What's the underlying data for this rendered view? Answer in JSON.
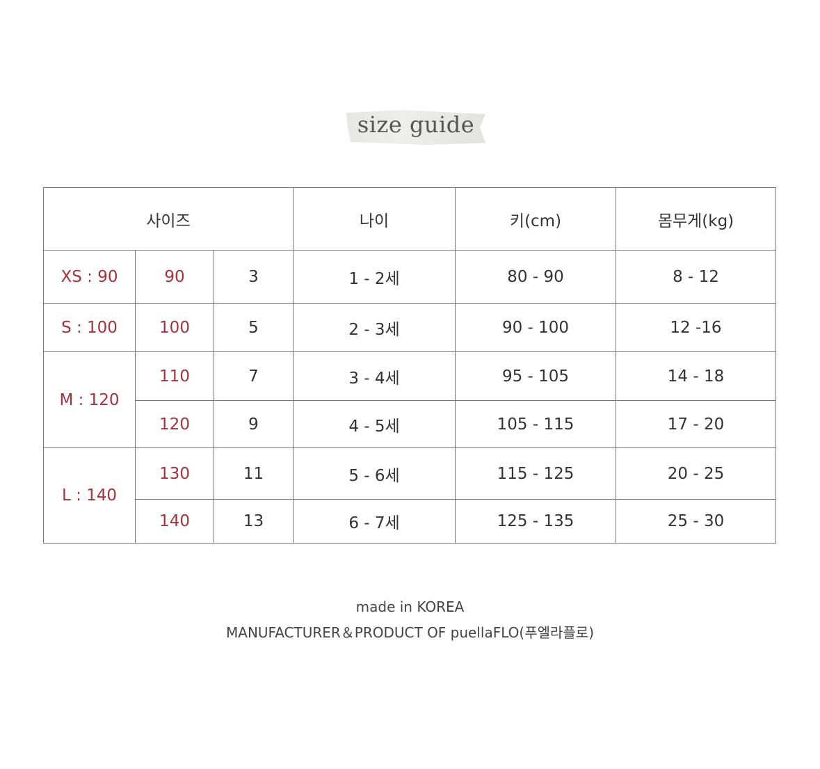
{
  "title": "size guide",
  "colors": {
    "size_text": "#a8323a",
    "border": "#777777"
  },
  "table": {
    "headers": [
      "사이즈",
      "나이",
      "키(cm)",
      "몸무게(kg)"
    ],
    "groups": [
      {
        "label": "XS : 90",
        "rows": [
          {
            "size": "90",
            "num": "3",
            "age": "1 - 2세",
            "height": "80 - 90",
            "weight": "8 - 12"
          }
        ]
      },
      {
        "label": "S : 100",
        "rows": [
          {
            "size": "100",
            "num": "5",
            "age": "2 - 3세",
            "height": "90 - 100",
            "weight": "12 -16"
          }
        ]
      },
      {
        "label": "M : 120",
        "rows": [
          {
            "size": "110",
            "num": "7",
            "age": "3 - 4세",
            "height": "95 - 105",
            "weight": "14 - 18"
          },
          {
            "size": "120",
            "num": "9",
            "age": "4 - 5세",
            "height": "105 - 115",
            "weight": "17 - 20"
          }
        ]
      },
      {
        "label": "L : 140",
        "rows": [
          {
            "size": "130",
            "num": "11",
            "age": "5 - 6세",
            "height": "115 - 125",
            "weight": "20 - 25"
          },
          {
            "size": "140",
            "num": "13",
            "age": "6 - 7세",
            "height": "125 - 135",
            "weight": "25 - 30"
          }
        ]
      }
    ]
  },
  "footer": {
    "line1": "made in KOREA",
    "line2": "MANUFACTURER＆PRODUCT OF puellaFLO(푸엘라플로)"
  }
}
